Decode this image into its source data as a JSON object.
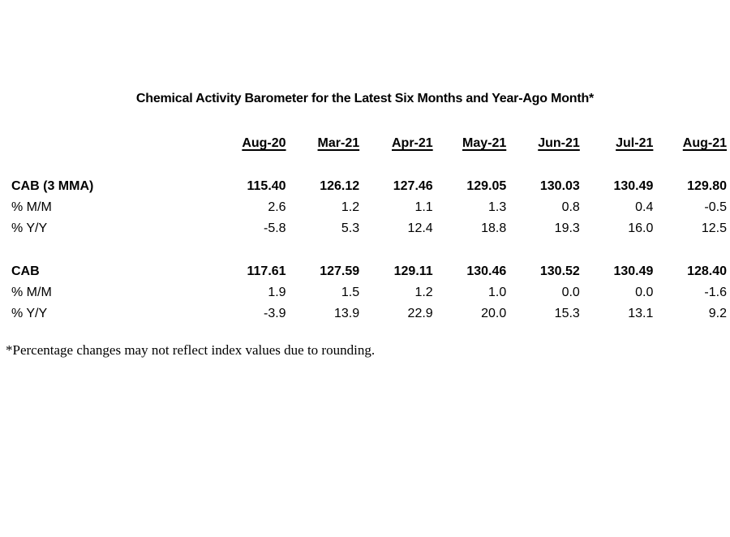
{
  "colors": {
    "text": "#000000",
    "background": "#ffffff"
  },
  "chart_data": {
    "type": "table",
    "title": "Chemical Activity Barometer for the Latest Six Months and Year-Ago Month*",
    "columns": [
      "Aug-20",
      "Mar-21",
      "Apr-21",
      "May-21",
      "Jun-21",
      "Jul-21",
      "Aug-21"
    ],
    "row_groups": [
      {
        "name": "cab-3mma-block",
        "rows": [
          {
            "label": "CAB (3 MMA)",
            "bold": true,
            "values": [
              "115.40",
              "126.12",
              "127.46",
              "129.05",
              "130.03",
              "130.49",
              "129.80"
            ]
          },
          {
            "label": "% M/M",
            "bold": false,
            "values": [
              "2.6",
              "1.2",
              "1.1",
              "1.3",
              "0.8",
              "0.4",
              "-0.5"
            ]
          },
          {
            "label": "% Y/Y",
            "bold": false,
            "values": [
              "-5.8",
              "5.3",
              "12.4",
              "18.8",
              "19.3",
              "16.0",
              "12.5"
            ]
          }
        ]
      },
      {
        "name": "cab-block",
        "rows": [
          {
            "label": "CAB",
            "bold": true,
            "values": [
              "117.61",
              "127.59",
              "129.11",
              "130.46",
              "130.52",
              "130.49",
              "128.40"
            ]
          },
          {
            "label": "% M/M",
            "bold": false,
            "values": [
              "1.9",
              "1.5",
              "1.2",
              "1.0",
              "0.0",
              "0.0",
              "-1.6"
            ]
          },
          {
            "label": "% Y/Y",
            "bold": false,
            "values": [
              "-3.9",
              "13.9",
              "22.9",
              "20.0",
              "15.3",
              "13.1",
              "9.2"
            ]
          }
        ]
      }
    ],
    "footnote": "*Percentage changes may not reflect index values due to rounding.",
    "layout": {
      "legend": "none",
      "grid": false,
      "header_style": "bold-underline",
      "value_alignment": "right"
    }
  }
}
